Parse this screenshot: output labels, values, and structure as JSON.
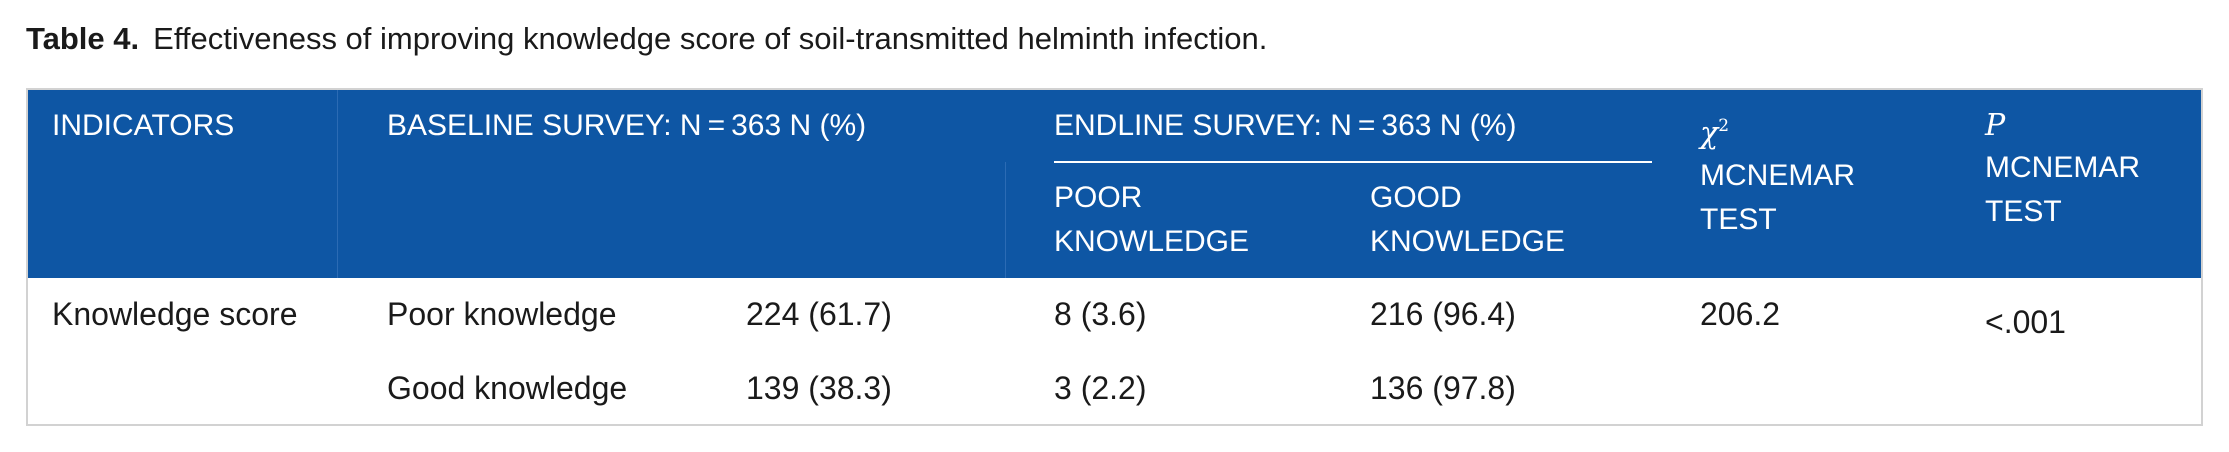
{
  "caption": {
    "label": "Table 4.",
    "text": "Effectiveness of improving knowledge score of soil-transmitted helminth infection."
  },
  "header": {
    "indicators": "INDICATORS",
    "baseline": "BASELINE SURVEY: N = 363 N (%)",
    "endline": "ENDLINE SURVEY: N = 363 N (%)",
    "poor": [
      "POOR",
      "KNOWLEDGE"
    ],
    "good": [
      "GOOD",
      "KNOWLEDGE"
    ],
    "chi_symbol": "χ",
    "chi_sup": "2",
    "chi_label": [
      "MCNEMAR",
      "TEST"
    ],
    "p_symbol": "P",
    "p_label": [
      "MCNEMAR",
      "TEST"
    ]
  },
  "rows": [
    {
      "indicator": "Knowledge score",
      "baseline_level": "Poor knowledge",
      "baseline_n": "224 (61.7)",
      "endline_poor": "8 (3.6)",
      "endline_good": "216 (96.4)",
      "chi2": "206.2",
      "p": "<.001"
    },
    {
      "indicator": "",
      "baseline_level": "Good knowledge",
      "baseline_n": "139 (38.3)",
      "endline_poor": "3 (2.2)",
      "endline_good": "136 (97.8)",
      "chi2": "",
      "p": ""
    }
  ]
}
